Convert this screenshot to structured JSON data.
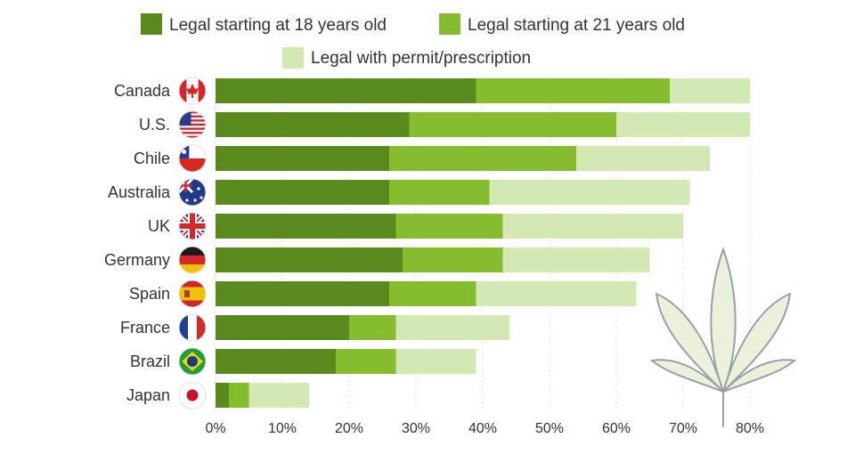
{
  "chart_data": {
    "type": "bar",
    "orientation": "horizontal",
    "stacked": true,
    "categories": [
      "Canada",
      "U.S.",
      "Chile",
      "Australia",
      "UK",
      "Germany",
      "Spain",
      "France",
      "Brazil",
      "Japan"
    ],
    "flags": [
      "canada-flag-icon",
      "us-flag-icon",
      "chile-flag-icon",
      "australia-flag-icon",
      "uk-flag-icon",
      "germany-flag-icon",
      "spain-flag-icon",
      "france-flag-icon",
      "brazil-flag-icon",
      "japan-flag-icon"
    ],
    "series": [
      {
        "name": "Legal starting at 18 years old",
        "color": "#5a8a1e",
        "values": [
          39,
          29,
          26,
          26,
          27,
          28,
          26,
          20,
          18,
          2
        ]
      },
      {
        "name": "Legal starting at 21 years old",
        "color": "#86bd2e",
        "values": [
          29,
          31,
          28,
          15,
          16,
          15,
          13,
          7,
          9,
          3
        ]
      },
      {
        "name": "Legal with permit/prescription",
        "color": "#d4e8b4",
        "values": [
          12,
          20,
          20,
          30,
          27,
          22,
          24,
          17,
          12,
          9
        ]
      }
    ],
    "xlim": [
      0,
      80
    ],
    "xticks": [
      "0%",
      "10%",
      "20%",
      "30%",
      "40%",
      "50%",
      "60%",
      "70%",
      "80%"
    ],
    "grid": true,
    "legend_position": "top"
  }
}
